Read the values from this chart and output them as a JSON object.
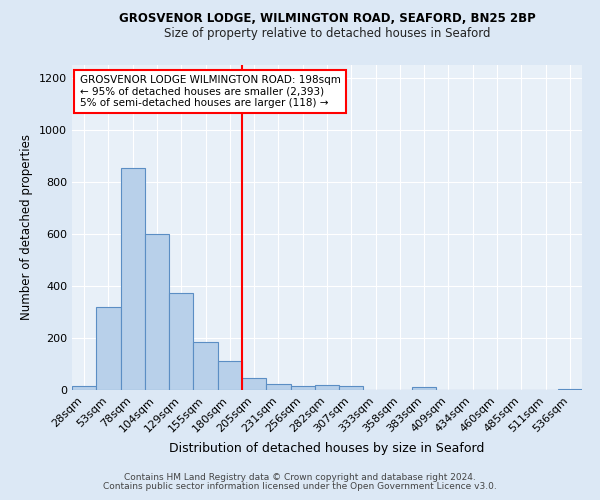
{
  "title1": "GROSVENOR LODGE, WILMINGTON ROAD, SEAFORD, BN25 2BP",
  "title2": "Size of property relative to detached houses in Seaford",
  "xlabel": "Distribution of detached houses by size in Seaford",
  "ylabel": "Number of detached properties",
  "categories": [
    "28sqm",
    "53sqm",
    "78sqm",
    "104sqm",
    "129sqm",
    "155sqm",
    "180sqm",
    "205sqm",
    "231sqm",
    "256sqm",
    "282sqm",
    "307sqm",
    "333sqm",
    "358sqm",
    "383sqm",
    "409sqm",
    "434sqm",
    "460sqm",
    "485sqm",
    "511sqm",
    "536sqm"
  ],
  "values": [
    15,
    320,
    855,
    600,
    375,
    185,
    110,
    45,
    25,
    15,
    20,
    15,
    0,
    0,
    10,
    0,
    0,
    0,
    0,
    0,
    5
  ],
  "bar_color": "#b8d0ea",
  "bar_edge_color": "#5b8ec4",
  "annotation_title": "GROSVENOR LODGE WILMINGTON ROAD: 198sqm",
  "annotation_line2": "← 95% of detached houses are smaller (2,393)",
  "annotation_line3": "5% of semi-detached houses are larger (118) →",
  "footnote1": "Contains HM Land Registry data © Crown copyright and database right 2024.",
  "footnote2": "Contains public sector information licensed under the Open Government Licence v3.0.",
  "ylim": [
    0,
    1250
  ],
  "background_color": "#dce8f5",
  "plot_bg_color": "#e8f0f8"
}
